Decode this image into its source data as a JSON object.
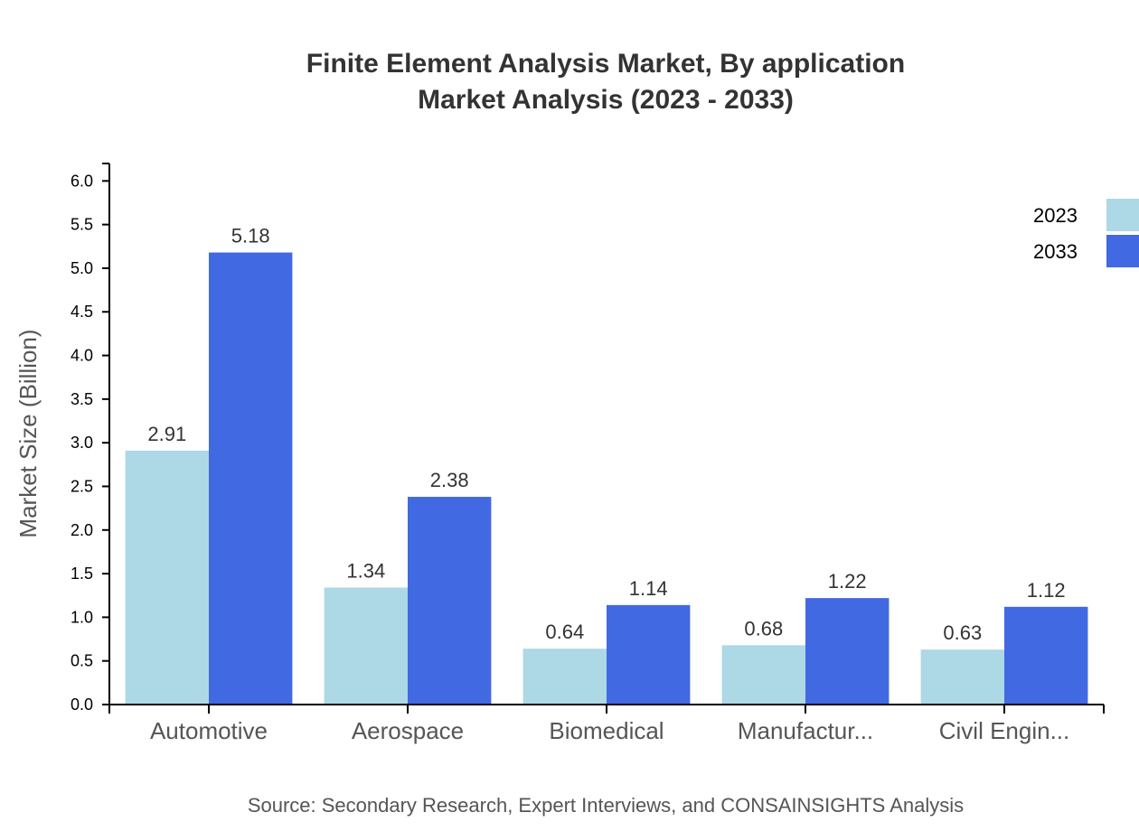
{
  "chart_data": {
    "type": "bar",
    "title": "Finite Element Analysis Market, By application",
    "subtitle": "Market Analysis (2023 - 2033)",
    "categories": [
      "Automotive",
      "Aerospace",
      "Biomedical",
      "Manufactur...",
      "Civil Engin..."
    ],
    "series": [
      {
        "name": "2023",
        "values": [
          2.91,
          1.34,
          0.64,
          0.68,
          0.63
        ],
        "color": "#add8e6"
      },
      {
        "name": "2033",
        "values": [
          5.18,
          2.38,
          1.14,
          1.22,
          1.12
        ],
        "color": "#4169e1"
      }
    ],
    "value_labels": [
      [
        "2.91",
        "1.34",
        "0.64",
        "0.68",
        "0.63"
      ],
      [
        "5.18",
        "2.38",
        "1.14",
        "1.22",
        "1.12"
      ]
    ],
    "ylabel": "Market Size (Billion)",
    "xlabel": "",
    "ylim": [
      0,
      6.2
    ],
    "yticks": [
      "0.0",
      "0.5",
      "1.0",
      "1.5",
      "2.0",
      "2.5",
      "3.0",
      "3.5",
      "4.0",
      "4.5",
      "5.0",
      "5.5",
      "6.0"
    ],
    "grid": false,
    "legend_position": "top-right",
    "source": "Source: Secondary Research, Expert Interviews, and CONSAINSIGHTS Analysis"
  }
}
